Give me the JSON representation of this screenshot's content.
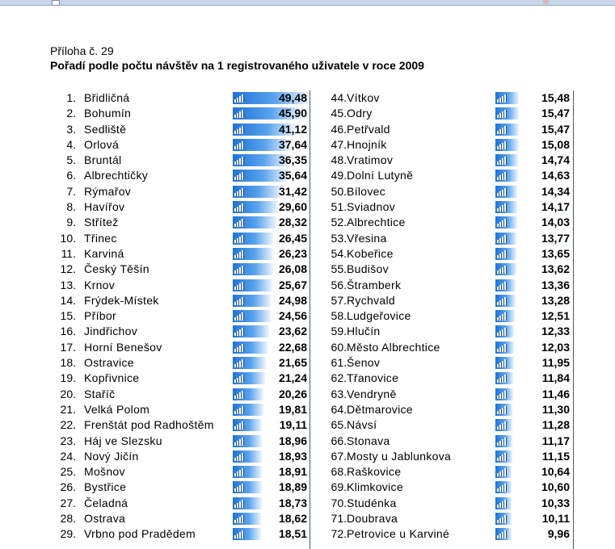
{
  "document": {
    "subtitle": "Příloha č. 29",
    "title": "Pořadí podle počtu návštěv na 1 registrovaného uživatele v roce 2009"
  },
  "bar_color": "#1e73d8",
  "ranking_left": [
    {
      "rank": "1.",
      "name": "Břidličná",
      "value": "49,48"
    },
    {
      "rank": "2.",
      "name": "Bohumín",
      "value": "45,90"
    },
    {
      "rank": "3.",
      "name": "Sedliště",
      "value": "41,12"
    },
    {
      "rank": "4.",
      "name": "Orlová",
      "value": "37,64"
    },
    {
      "rank": "5.",
      "name": "Bruntál",
      "value": "36,35"
    },
    {
      "rank": "6.",
      "name": "Albrechtičky",
      "value": "35,64"
    },
    {
      "rank": "7.",
      "name": "Rýmařov",
      "value": "31,42"
    },
    {
      "rank": "8.",
      "name": "Havířov",
      "value": "29,60"
    },
    {
      "rank": "9.",
      "name": "Střítež",
      "value": "28,32"
    },
    {
      "rank": "10.",
      "name": "Třinec",
      "value": "26,45"
    },
    {
      "rank": "11.",
      "name": "Karviná",
      "value": "26,23"
    },
    {
      "rank": "12.",
      "name": "Český Těšín",
      "value": "26,08"
    },
    {
      "rank": "13.",
      "name": "Krnov",
      "value": "25,67"
    },
    {
      "rank": "14.",
      "name": "Frýdek-Místek",
      "value": "24,98"
    },
    {
      "rank": "15.",
      "name": "Příbor",
      "value": "24,56"
    },
    {
      "rank": "16.",
      "name": "Jindřichov",
      "value": "23,62"
    },
    {
      "rank": "17.",
      "name": "Horní Benešov",
      "value": "22,68"
    },
    {
      "rank": "18.",
      "name": "Ostravice",
      "value": "21,65"
    },
    {
      "rank": "19.",
      "name": "Kopřivnice",
      "value": "21,24"
    },
    {
      "rank": "20.",
      "name": "Staříč",
      "value": "20,26"
    },
    {
      "rank": "21.",
      "name": "Velká Polom",
      "value": "19,81"
    },
    {
      "rank": "22.",
      "name": "Frenštát pod Radhoštěm",
      "value": "19,11"
    },
    {
      "rank": "23.",
      "name": "Háj ve Slezsku",
      "value": "18,96"
    },
    {
      "rank": "24.",
      "name": "Nový Jičín",
      "value": "18,93"
    },
    {
      "rank": "25.",
      "name": "Mošnov",
      "value": "18,91"
    },
    {
      "rank": "26.",
      "name": "Bystřice",
      "value": "18,89"
    },
    {
      "rank": "27.",
      "name": "Čeladná",
      "value": "18,73"
    },
    {
      "rank": "28.",
      "name": "Ostrava",
      "value": "18,62"
    },
    {
      "rank": "29.",
      "name": "Vrbno pod Pradědem",
      "value": "18,51"
    }
  ],
  "ranking_right": [
    {
      "rank": "44.",
      "name": "Vítkov",
      "value": "15,48"
    },
    {
      "rank": "45.",
      "name": "Odry",
      "value": "15,47"
    },
    {
      "rank": "46.",
      "name": "Petřvald",
      "value": "15,47"
    },
    {
      "rank": "47.",
      "name": "Hnojník",
      "value": "15,08"
    },
    {
      "rank": "48.",
      "name": "Vratimov",
      "value": "14,74"
    },
    {
      "rank": "49.",
      "name": "Dolní Lutyně",
      "value": "14,63"
    },
    {
      "rank": "50.",
      "name": "Bílovec",
      "value": "14,34"
    },
    {
      "rank": "51.",
      "name": "Sviadnov",
      "value": "14,17"
    },
    {
      "rank": "52.",
      "name": "Albrechtice",
      "value": "14,03"
    },
    {
      "rank": "53.",
      "name": "Vřesina",
      "value": "13,77"
    },
    {
      "rank": "54.",
      "name": "Kobeřice",
      "value": "13,65"
    },
    {
      "rank": "55.",
      "name": "Budišov",
      "value": "13,62"
    },
    {
      "rank": "56.",
      "name": "Štramberk",
      "value": "13,36"
    },
    {
      "rank": "57.",
      "name": "Rychvald",
      "value": "13,28"
    },
    {
      "rank": "58.",
      "name": "Ludgeřovice",
      "value": "12,51"
    },
    {
      "rank": "59.",
      "name": "Hlučín",
      "value": "12,33"
    },
    {
      "rank": "60.",
      "name": "Město Albrechtice",
      "value": "12,03"
    },
    {
      "rank": "61.",
      "name": "Šenov",
      "value": "11,95"
    },
    {
      "rank": "62.",
      "name": "Třanovice",
      "value": "11,84"
    },
    {
      "rank": "63.",
      "name": "Vendryně",
      "value": "11,46"
    },
    {
      "rank": "64.",
      "name": "Dětmarovice",
      "value": "11,30"
    },
    {
      "rank": "65.",
      "name": "Návsí",
      "value": "11,28"
    },
    {
      "rank": "66.",
      "name": "Stonava",
      "value": "11,17"
    },
    {
      "rank": "67.",
      "name": "Mosty u Jablunkova",
      "value": "11,15"
    },
    {
      "rank": "68.",
      "name": "Raškovice",
      "value": "10,64"
    },
    {
      "rank": "69.",
      "name": "Klimkovice",
      "value": "10,60"
    },
    {
      "rank": "70.",
      "name": "Studénka",
      "value": "10,33"
    },
    {
      "rank": "71.",
      "name": "Doubrava",
      "value": "10,11"
    },
    {
      "rank": "72.",
      "name": "Petrovice u Karviné",
      "value": "9,96"
    }
  ]
}
